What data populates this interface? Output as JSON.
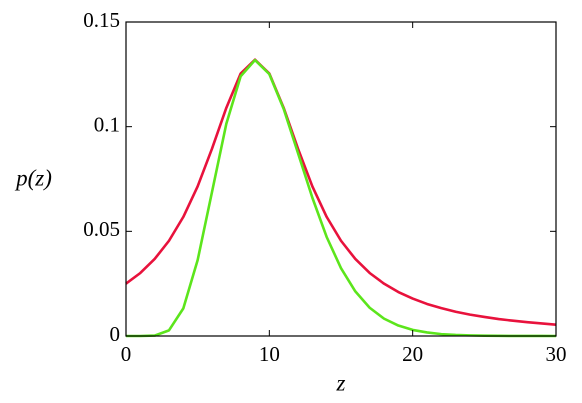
{
  "chart_data": {
    "type": "line",
    "xlabel": "z",
    "ylabel": "p(z)",
    "x": [
      0,
      1,
      2,
      3,
      4,
      5,
      6,
      7,
      8,
      9,
      10,
      11,
      12,
      13,
      14,
      15,
      16,
      17,
      18,
      19,
      20,
      21,
      22,
      23,
      24,
      25,
      26,
      27,
      28,
      29,
      30
    ],
    "series": [
      {
        "color": "#e8123c",
        "values": [
          0.025,
          0.0301,
          0.0368,
          0.0455,
          0.0569,
          0.0715,
          0.0895,
          0.109,
          0.1254,
          0.132,
          0.1254,
          0.109,
          0.0895,
          0.0715,
          0.0569,
          0.0455,
          0.0368,
          0.0301,
          0.025,
          0.021,
          0.0179,
          0.0153,
          0.0133,
          0.0116,
          0.0102,
          0.0091,
          0.0081,
          0.0073,
          0.0066,
          0.006,
          0.0054
        ]
      },
      {
        "color": "#5ce51c",
        "values": [
          0,
          1e-06,
          0.00019,
          0.0027,
          0.0132,
          0.0363,
          0.0688,
          0.1014,
          0.1241,
          0.1318,
          0.1251,
          0.1085,
          0.0874,
          0.0661,
          0.0473,
          0.0324,
          0.0213,
          0.0135,
          0.0083,
          0.005,
          0.0029,
          0.0017,
          0.0009,
          0.0005,
          0.0003,
          0.00015,
          8e-05,
          4e-05,
          2e-05,
          1e-05,
          5e-06
        ]
      }
    ],
    "xlim": [
      0,
      30
    ],
    "xticks": [
      0,
      10,
      20,
      30
    ],
    "ylim": [
      0,
      0.15
    ],
    "yticks": [
      0,
      0.05,
      0.1,
      0.15
    ]
  }
}
